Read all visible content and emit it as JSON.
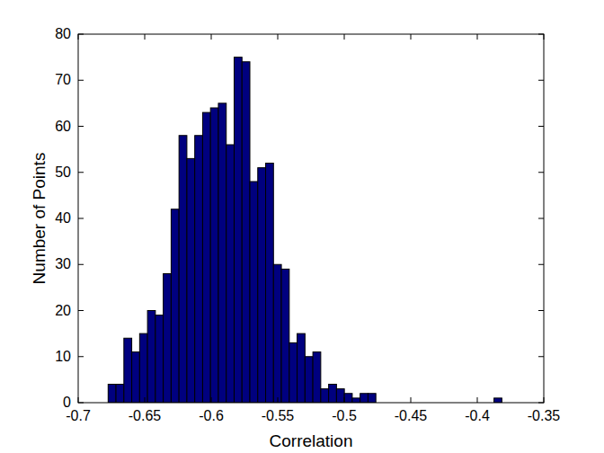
{
  "chart_data": {
    "type": "histogram",
    "x_label": "Correlation",
    "y_label": "Number of Points",
    "bins": [
      -0.6775,
      -0.67158,
      -0.66566,
      -0.65974,
      -0.65382,
      -0.6479,
      -0.64198,
      -0.63606,
      -0.63014,
      -0.62422,
      -0.6183,
      -0.61238,
      -0.60646,
      -0.60054,
      -0.59462,
      -0.5887,
      -0.58278,
      -0.57686,
      -0.57094,
      -0.56502,
      -0.5591,
      -0.55318,
      -0.54726,
      -0.54134,
      -0.53542,
      -0.5295,
      -0.52358,
      -0.51766,
      -0.51174,
      -0.50582,
      -0.4999,
      -0.49398,
      -0.48806,
      -0.48214,
      -0.47622,
      -0.4703,
      -0.46438,
      -0.45846,
      -0.45254,
      -0.44662,
      -0.4407,
      -0.43478,
      -0.42886,
      -0.42294,
      -0.41702,
      -0.4111,
      -0.40518,
      -0.39926,
      -0.39334,
      -0.38742,
      -0.3815
    ],
    "values": [
      4,
      4,
      14,
      11,
      15,
      20,
      19,
      28,
      42,
      58,
      53,
      58,
      63,
      64,
      65,
      56,
      75,
      74,
      48,
      51,
      52,
      30,
      29,
      13,
      15,
      10,
      11,
      3,
      4,
      3,
      2,
      1,
      2,
      2,
      0,
      0,
      0,
      0,
      0,
      0,
      0,
      0,
      0,
      0,
      0,
      0,
      0,
      0,
      0,
      1
    ],
    "color": "#00007f",
    "xlim": [
      -0.7,
      -0.35
    ],
    "ylim": [
      0,
      80
    ],
    "xticks": [
      -0.7,
      -0.65,
      -0.6,
      -0.55,
      -0.5,
      -0.45,
      -0.4,
      -0.35
    ],
    "yticks": [
      0,
      10,
      20,
      30,
      40,
      50,
      60,
      70,
      80
    ],
    "grid": false
  }
}
